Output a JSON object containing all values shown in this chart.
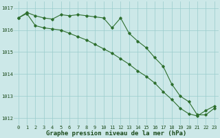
{
  "background_color": "#cce8e8",
  "grid_color": "#99cccc",
  "line_color": "#2d6e2d",
  "x_values": [
    0,
    1,
    2,
    3,
    4,
    5,
    6,
    7,
    8,
    9,
    10,
    11,
    12,
    13,
    14,
    15,
    16,
    17,
    18,
    19,
    20,
    21,
    22,
    23
  ],
  "line1_y": [
    1016.55,
    1016.8,
    1016.65,
    1016.55,
    1016.5,
    1016.7,
    1016.65,
    1016.7,
    1016.65,
    1016.6,
    1016.55,
    1016.1,
    1016.55,
    1015.85,
    1015.5,
    1015.2,
    1014.75,
    1014.35,
    1013.55,
    1013.0,
    1012.75,
    1012.15,
    1012.15,
    1012.45
  ],
  "line2_y": [
    1016.55,
    1016.75,
    1016.2,
    1016.1,
    1016.05,
    1016.0,
    1015.85,
    1015.7,
    1015.55,
    1015.35,
    1015.15,
    1014.95,
    1014.7,
    1014.45,
    1014.15,
    1013.9,
    1013.6,
    1013.2,
    1012.85,
    1012.45,
    1012.2,
    1012.1,
    1012.35,
    1012.55
  ],
  "ylim": [
    1011.7,
    1017.3
  ],
  "yticks": [
    1012,
    1013,
    1014,
    1015,
    1016,
    1017
  ],
  "xticks": [
    0,
    1,
    2,
    3,
    4,
    5,
    6,
    7,
    8,
    9,
    10,
    11,
    12,
    13,
    14,
    15,
    16,
    17,
    18,
    19,
    20,
    21,
    22,
    23
  ],
  "xlabel": "Graphe pression niveau de la mer (hPa)",
  "tick_fontsize": 5.0,
  "xlabel_fontsize": 6.5
}
